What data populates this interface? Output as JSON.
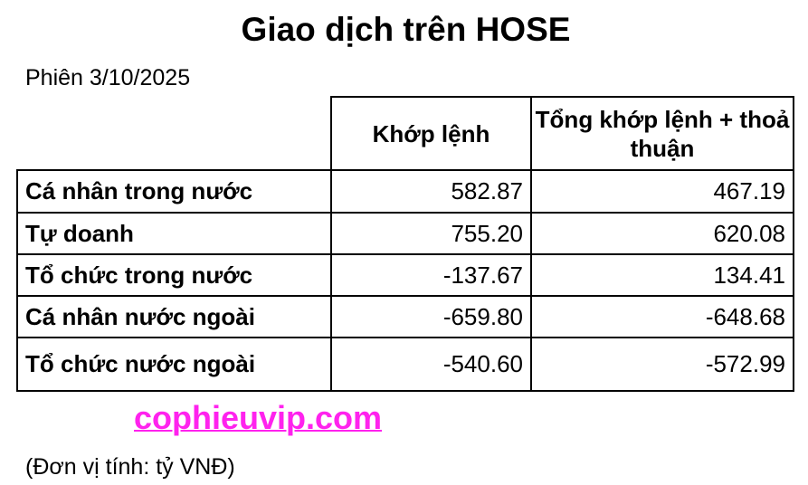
{
  "title": "Giao dịch trên HOSE",
  "session": "Phiên 3/10/2025",
  "table": {
    "headers": [
      "Khớp lệnh",
      "Tổng khớp lệnh + thoả thuận"
    ],
    "rows": [
      {
        "label": "Cá nhân trong nước",
        "matched": "582.87",
        "total": "467.19"
      },
      {
        "label": "Tự doanh",
        "matched": "755.20",
        "total": "620.08"
      },
      {
        "label": "Tổ chức trong nước",
        "matched": "-137.67",
        "total": "134.41"
      },
      {
        "label": "Cá nhân nước ngoài",
        "matched": "-659.80",
        "total": "-648.68"
      },
      {
        "label": "Tổ chức nước ngoài",
        "matched": "-540.60",
        "total": "-572.99"
      }
    ]
  },
  "link": {
    "text": "cophieuvip.com",
    "color": "#ff22ee"
  },
  "unit": "(Đơn vị tính: tỷ VNĐ)"
}
